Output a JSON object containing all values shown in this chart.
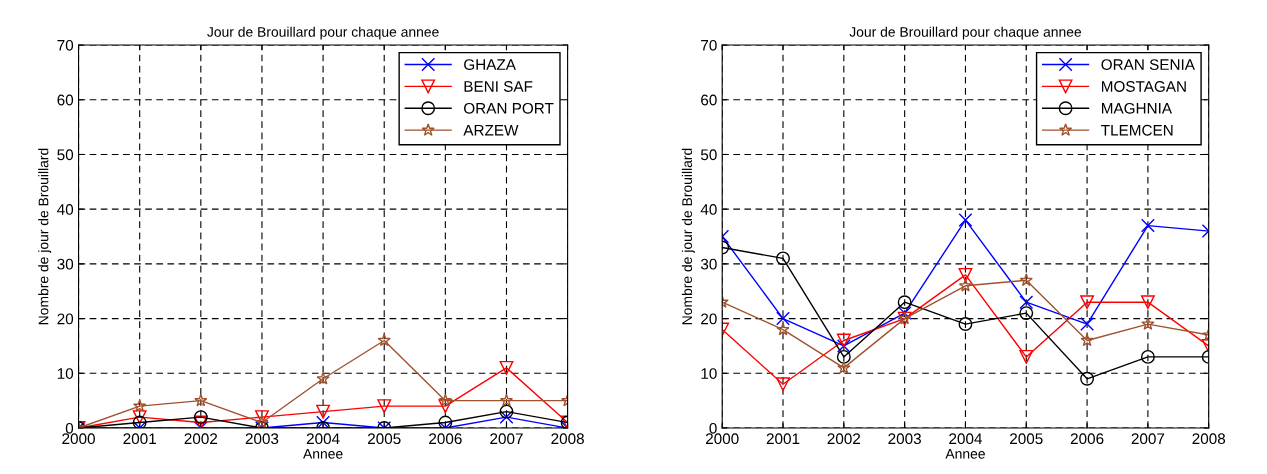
{
  "chart_data": [
    {
      "type": "line",
      "title": "Jour de Brouillard pour chaque annee",
      "xlabel": "Annee",
      "ylabel": "Nombre de jour de Brouillard",
      "x": [
        2000,
        2001,
        2002,
        2003,
        2004,
        2005,
        2006,
        2007,
        2008
      ],
      "xlim": [
        2000,
        2008
      ],
      "xticks": [
        2000,
        2001,
        2002,
        2003,
        2004,
        2005,
        2006,
        2007,
        2008
      ],
      "ylim": [
        0,
        70
      ],
      "yticks": [
        0,
        10,
        20,
        30,
        40,
        50,
        60,
        70
      ],
      "grid": true,
      "legend": "top right",
      "series": [
        {
          "name": "GHAZA",
          "color": "#0000ff",
          "marker": "cross",
          "values": [
            0,
            0,
            0,
            0,
            1,
            0,
            0,
            2,
            0
          ]
        },
        {
          "name": "BENI SAF",
          "color": "#ff0000",
          "marker": "triangle",
          "values": [
            0,
            2,
            1,
            2,
            3,
            4,
            4,
            11,
            1
          ]
        },
        {
          "name": "ORAN PORT",
          "color": "#000000",
          "marker": "circle",
          "values": [
            0,
            1,
            2,
            0,
            0,
            0,
            1,
            3,
            1
          ]
        },
        {
          "name": "ARZEW",
          "color": "#a0522d",
          "marker": "star",
          "values": [
            0,
            4,
            5,
            1,
            9,
            16,
            5,
            5,
            5
          ]
        }
      ]
    },
    {
      "type": "line",
      "title": "Jour de Brouillard pour chaque annee",
      "xlabel": "Annee",
      "ylabel": "Nombre de jour de Brouillard",
      "x": [
        2000,
        2001,
        2002,
        2003,
        2004,
        2005,
        2006,
        2007,
        2008
      ],
      "xlim": [
        2000,
        2008
      ],
      "xticks": [
        2000,
        2001,
        2002,
        2003,
        2004,
        2005,
        2006,
        2007,
        2008
      ],
      "ylim": [
        0,
        70
      ],
      "yticks": [
        0,
        10,
        20,
        30,
        40,
        50,
        60,
        70
      ],
      "grid": true,
      "legend": "top right",
      "series": [
        {
          "name": "ORAN SENIA",
          "color": "#0000ff",
          "marker": "cross",
          "values": [
            35,
            20,
            15,
            21,
            38,
            23,
            19,
            37,
            36
          ]
        },
        {
          "name": "MOSTAGAN",
          "color": "#ff0000",
          "marker": "triangle",
          "values": [
            18,
            8,
            16,
            20,
            28,
            13,
            23,
            23,
            15
          ]
        },
        {
          "name": "MAGHNIA",
          "color": "#000000",
          "marker": "circle",
          "values": [
            33,
            31,
            13,
            23,
            19,
            21,
            9,
            13,
            13
          ]
        },
        {
          "name": "TLEMCEN",
          "color": "#a0522d",
          "marker": "star",
          "values": [
            23,
            18,
            11,
            20,
            26,
            27,
            16,
            19,
            17
          ]
        }
      ]
    }
  ]
}
